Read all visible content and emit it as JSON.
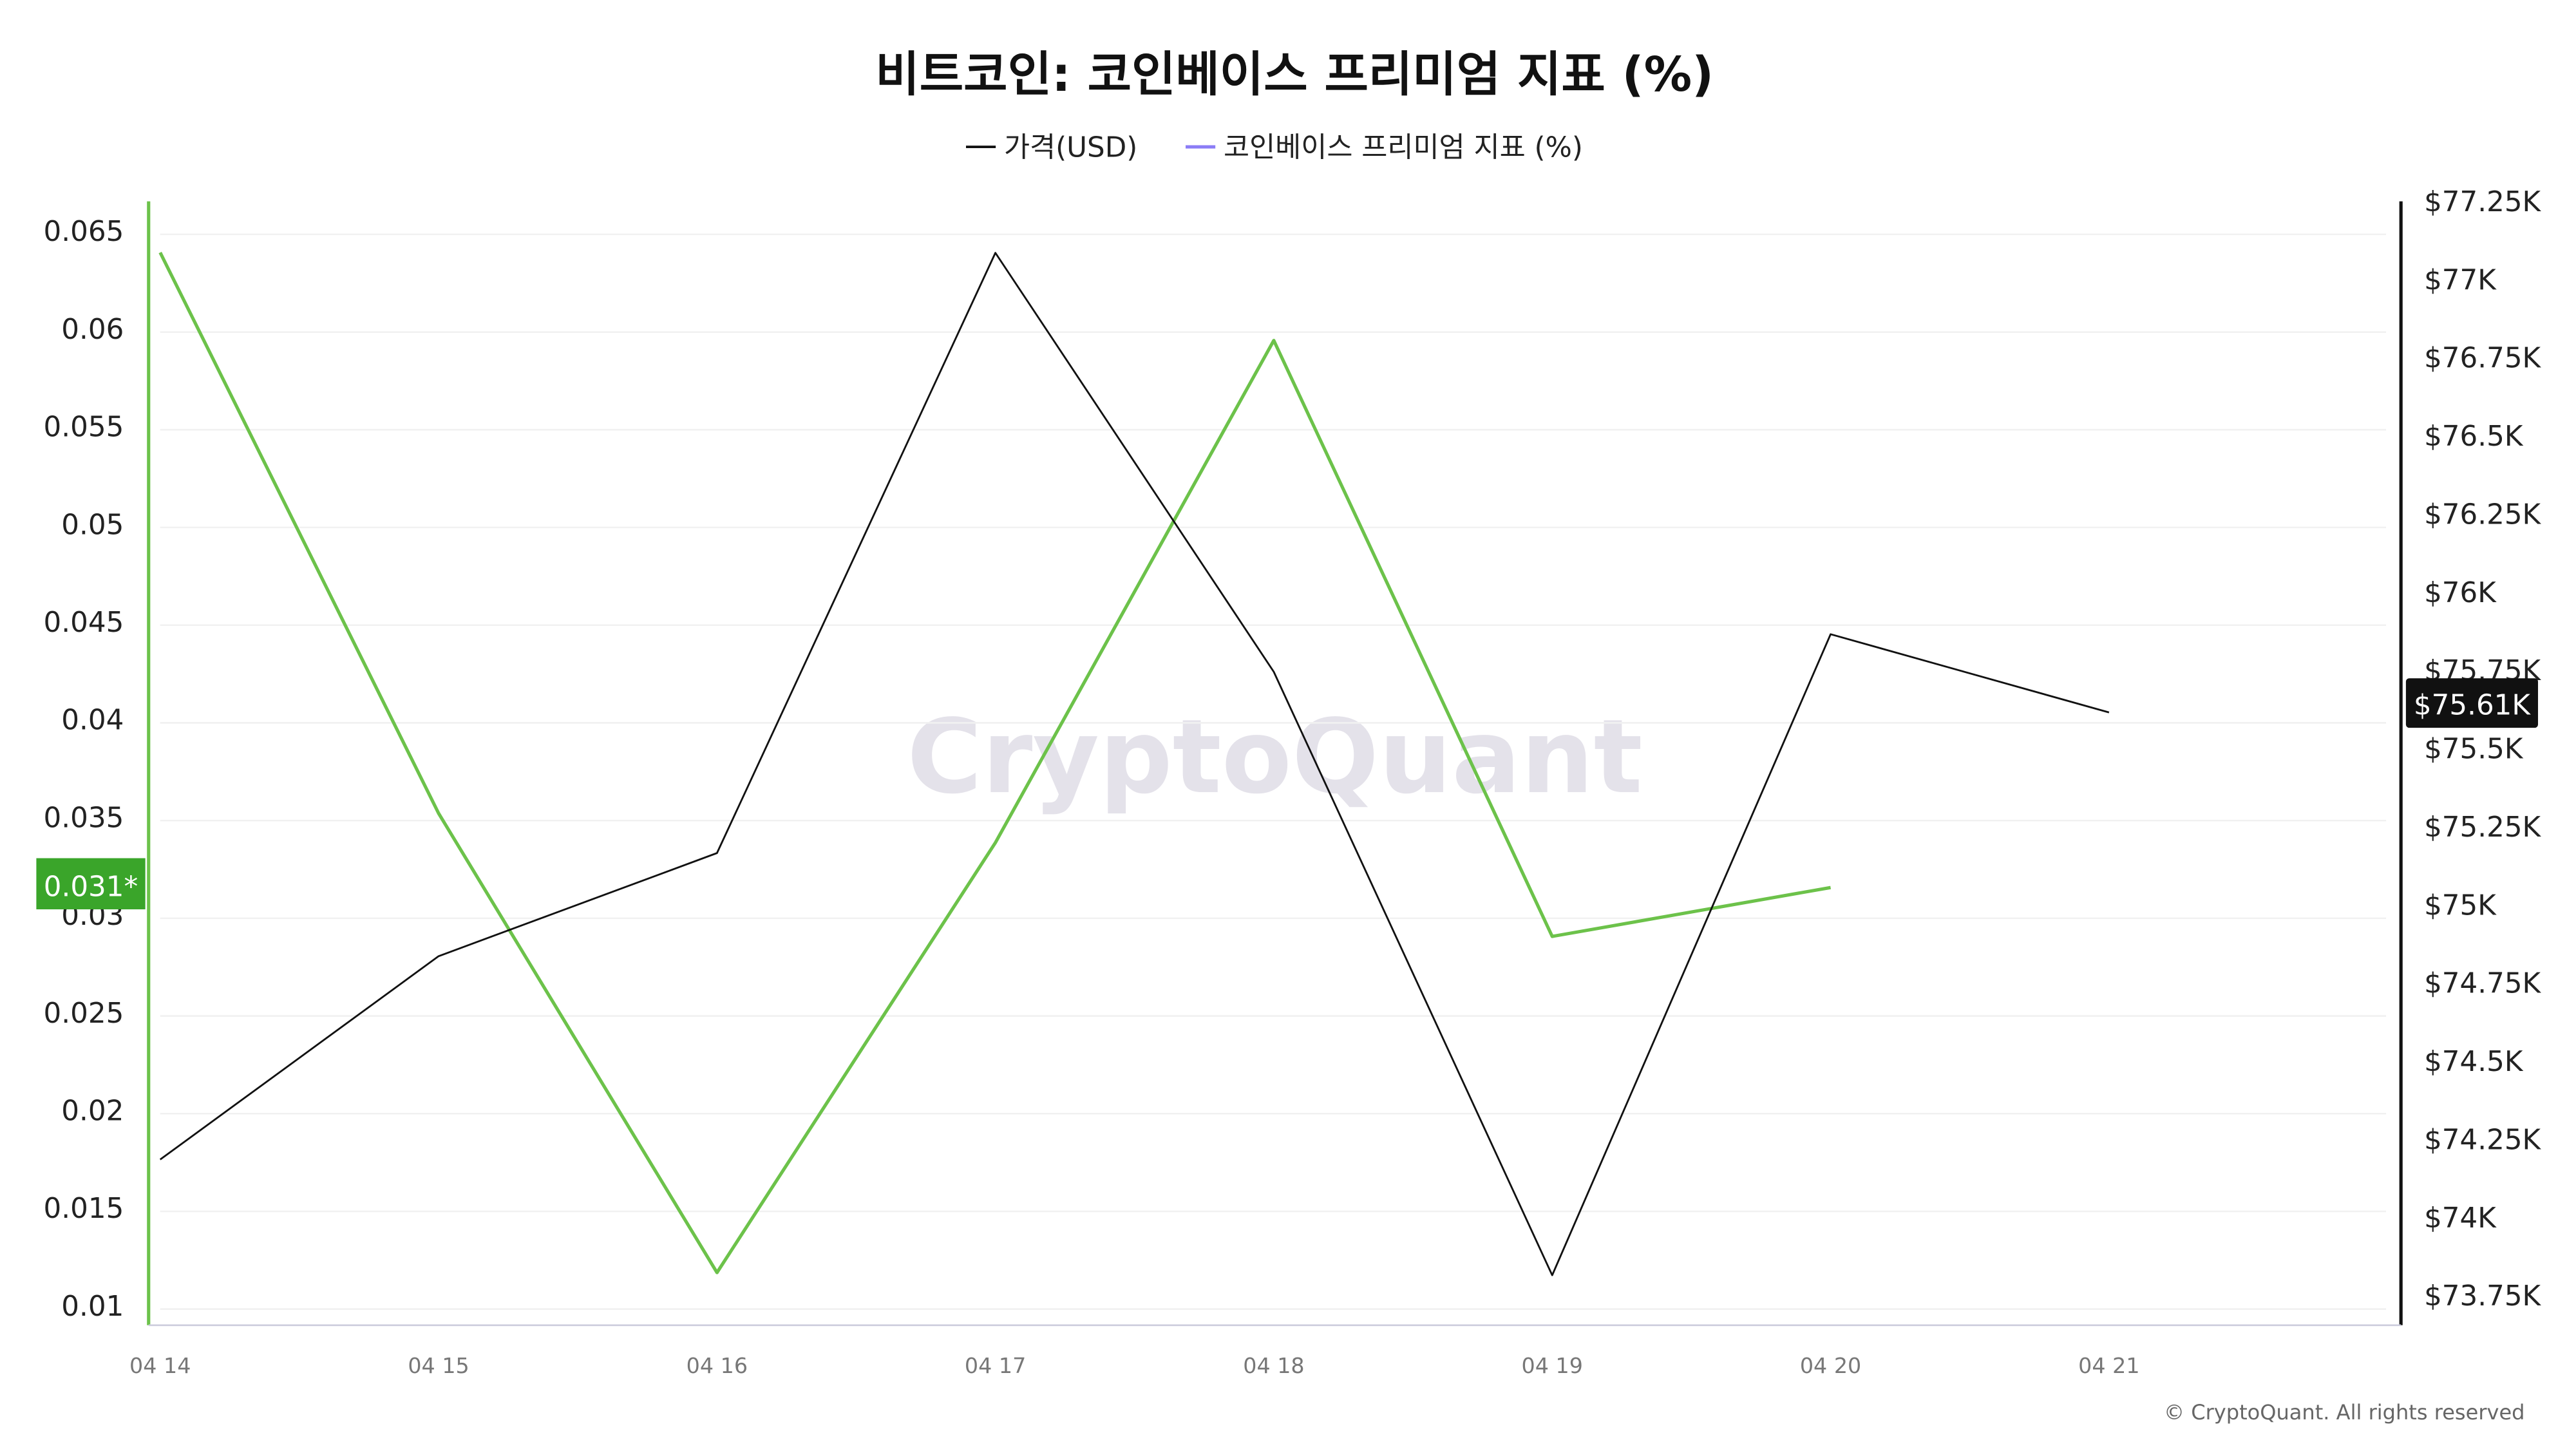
{
  "colors": {
    "price": "#111111",
    "premium": "#6cc24a",
    "premium_legend": "#8b7cf6",
    "premium_badge": "#3aa52a",
    "price_badge": "#111111",
    "watermark": "#e4e2ea"
  },
  "chart_data": {
    "type": "line",
    "title": "비트코인: 코인베이스 프리미엄 지표 (%)",
    "categories": [
      "04 14",
      "04 15",
      "04 16",
      "04 17",
      "04 18",
      "04 19",
      "04 20",
      "04 21"
    ],
    "series": [
      {
        "name": "가격(USD)",
        "axis": "right",
        "values": [
          74180,
          74830,
          75160,
          77080,
          75740,
          73810,
          75860,
          75610
        ]
      },
      {
        "name": "코인베이스 프리미엄 지표 (%)",
        "axis": "left",
        "values": [
          0.0639,
          0.0352,
          0.0117,
          0.0337,
          0.0594,
          0.0289,
          0.0314,
          null
        ]
      }
    ],
    "left_axis": {
      "range": [
        0.01,
        0.065
      ],
      "ticks": [
        "0.065",
        "0.06",
        "0.055",
        "0.05",
        "0.045",
        "0.04",
        "0.035",
        "0.03",
        "0.025",
        "0.02",
        "0.015",
        "0.01"
      ],
      "tick_values": [
        0.065,
        0.06,
        0.055,
        0.05,
        0.045,
        0.04,
        0.035,
        0.03,
        0.025,
        0.02,
        0.015,
        0.01
      ]
    },
    "right_axis": {
      "range": [
        73750,
        77250
      ],
      "ticks": [
        "$77.25K",
        "$77K",
        "$76.75K",
        "$76.5K",
        "$76.25K",
        "$76K",
        "$75.75K",
        "$75.5K",
        "$75.25K",
        "$75K",
        "$74.75K",
        "$74.5K",
        "$74.25K",
        "$74K",
        "$73.75K"
      ],
      "tick_values": [
        77250,
        77000,
        76750,
        76500,
        76250,
        76000,
        75750,
        75500,
        75250,
        75000,
        74750,
        74500,
        74250,
        74000,
        73750
      ]
    },
    "last_value_labels": {
      "premium": "0.031*",
      "price": "$75.61K"
    },
    "grid": true,
    "legend_placement": "top-center"
  },
  "watermark": "CryptoQuant",
  "copyright": "© CryptoQuant. All rights reserved"
}
